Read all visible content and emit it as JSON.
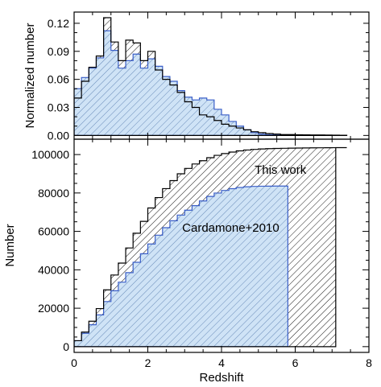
{
  "chart_data": [
    {
      "type": "histogram",
      "panel": "top",
      "ylabel": "Normalized number",
      "xlim": [
        0,
        8
      ],
      "ylim": [
        -0.004,
        0.132
      ],
      "yticks": [
        0.0,
        0.03,
        0.06,
        0.09,
        0.12
      ],
      "ytick_labels": [
        "0.00",
        "0.03",
        "0.06",
        "0.09",
        "0.12"
      ],
      "bin_width": 0.2,
      "series": [
        {
          "name": "This work",
          "color": "#000000",
          "fill": "hatched",
          "values": [
            0.04,
            0.058,
            0.073,
            0.085,
            0.126,
            0.1,
            0.08,
            0.102,
            0.099,
            0.08,
            0.09,
            0.07,
            0.06,
            0.054,
            0.046,
            0.036,
            0.03,
            0.022,
            0.02,
            0.016,
            0.012,
            0.01,
            0.008,
            0.006,
            0.004,
            0.003,
            0.002,
            0.0015,
            0.001,
            0.001,
            0.0008,
            0.0006,
            0.0005,
            0.0005,
            0.0004,
            0.0003,
            0.0002
          ]
        },
        {
          "name": "Cardamone+2010",
          "color": "#3a5fc8",
          "fill": "#cfe3f6",
          "values": [
            0.05,
            0.062,
            0.072,
            0.083,
            0.112,
            0.091,
            0.072,
            0.08,
            0.087,
            0.072,
            0.082,
            0.074,
            0.063,
            0.058,
            0.048,
            0.041,
            0.038,
            0.04,
            0.038,
            0.028,
            0.022,
            0.015,
            0.01,
            0.006,
            0.003,
            0.0015,
            0.0008,
            0.0004,
            0.0002
          ]
        }
      ]
    },
    {
      "type": "cumulative",
      "panel": "bottom",
      "xlabel": "Redshift",
      "ylabel": "Number",
      "xlim": [
        0,
        8
      ],
      "ylim": [
        -3000,
        108000
      ],
      "xticks": [
        0,
        2,
        4,
        6,
        8
      ],
      "xtick_labels": [
        "0",
        "2",
        "4",
        "6",
        "8"
      ],
      "yticks": [
        0,
        20000,
        40000,
        60000,
        80000,
        100000
      ],
      "ytick_labels": [
        "0",
        "20000",
        "40000",
        "60000",
        "80000",
        "100000"
      ],
      "series": [
        {
          "name": "This work",
          "color": "#000000",
          "fill": "hatched",
          "total": 103600,
          "end_x": 7.1
        },
        {
          "name": "Cardamone+2010",
          "color": "#3a5fc8",
          "fill": "#cfe3f6",
          "total": 83600,
          "end_x": 5.8
        }
      ],
      "annotations": [
        {
          "text": "This work",
          "x": 5.6,
          "y": 92000
        },
        {
          "text": "Cardamone+2010",
          "x": 4.25,
          "y": 62000
        }
      ]
    }
  ]
}
